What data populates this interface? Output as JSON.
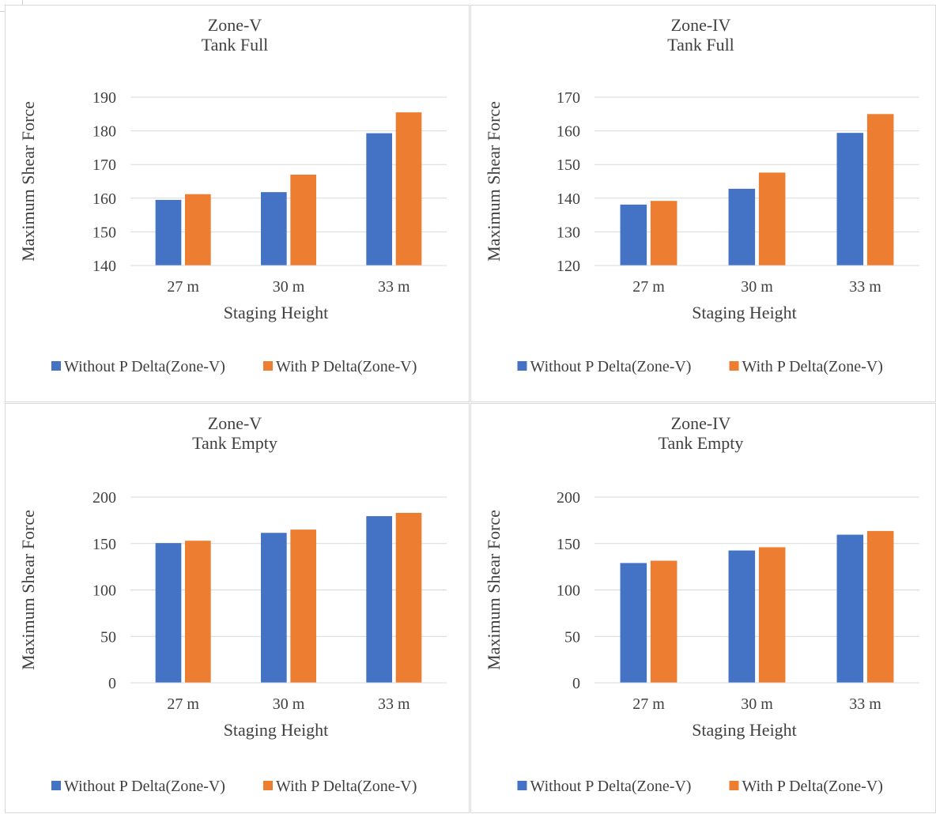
{
  "colors": {
    "without": "#4472C4",
    "with": "#ED7D31",
    "grid": "#d9d9d9",
    "text": "#404040"
  },
  "chart_data": [
    {
      "type": "bar",
      "title_line1": "Zone-V",
      "title_line2": "Tank Full",
      "xlabel": "Staging Height",
      "ylabel": "Maximum Shear Force",
      "categories": [
        "27 m",
        "30 m",
        "33 m"
      ],
      "ylim": [
        140,
        190
      ],
      "yticks": [
        140,
        150,
        160,
        170,
        180,
        190
      ],
      "grid": true,
      "legend_position": "bottom",
      "series": [
        {
          "name": "Without P Delta(Zone-V)",
          "values": [
            159.5,
            161.8,
            179.3
          ]
        },
        {
          "name": "With P Delta(Zone-V)",
          "values": [
            161.2,
            167.0,
            185.5
          ]
        }
      ]
    },
    {
      "type": "bar",
      "title_line1": "Zone-IV",
      "title_line2": "Tank Full",
      "xlabel": "Staging Height",
      "ylabel": "Maximum Shear Force",
      "categories": [
        "27 m",
        "30 m",
        "33 m"
      ],
      "ylim": [
        120,
        170
      ],
      "yticks": [
        120,
        130,
        140,
        150,
        160,
        170
      ],
      "grid": true,
      "legend_position": "bottom",
      "series": [
        {
          "name": "Without P Delta(Zone-V)",
          "values": [
            138.1,
            142.8,
            159.4
          ]
        },
        {
          "name": "With P Delta(Zone-V)",
          "values": [
            139.2,
            147.6,
            165.0
          ]
        }
      ]
    },
    {
      "type": "bar",
      "title_line1": "Zone-V",
      "title_line2": "Tank Empty",
      "xlabel": "Staging Height",
      "ylabel": "Maximum Shear Force",
      "categories": [
        "27 m",
        "30 m",
        "33 m"
      ],
      "ylim": [
        0,
        200
      ],
      "yticks": [
        0,
        50,
        100,
        150,
        200
      ],
      "grid": true,
      "legend_position": "bottom",
      "series": [
        {
          "name": "Without P Delta(Zone-V)",
          "values": [
            150.5,
            161.5,
            179.5
          ]
        },
        {
          "name": "With P Delta(Zone-V)",
          "values": [
            153.0,
            165.0,
            183.0
          ]
        }
      ]
    },
    {
      "type": "bar",
      "title_line1": "Zone-IV",
      "title_line2": "Tank Empty",
      "xlabel": "Staging Height",
      "ylabel": "Maximum Shear Force",
      "categories": [
        "27 m",
        "30 m",
        "33 m"
      ],
      "ylim": [
        0,
        200
      ],
      "yticks": [
        0,
        50,
        100,
        150,
        200
      ],
      "grid": true,
      "legend_position": "bottom",
      "series": [
        {
          "name": "Without P Delta(Zone-V)",
          "values": [
            129.0,
            142.5,
            159.5
          ]
        },
        {
          "name": "With P Delta(Zone-V)",
          "values": [
            131.5,
            146.0,
            163.5
          ]
        }
      ]
    }
  ]
}
